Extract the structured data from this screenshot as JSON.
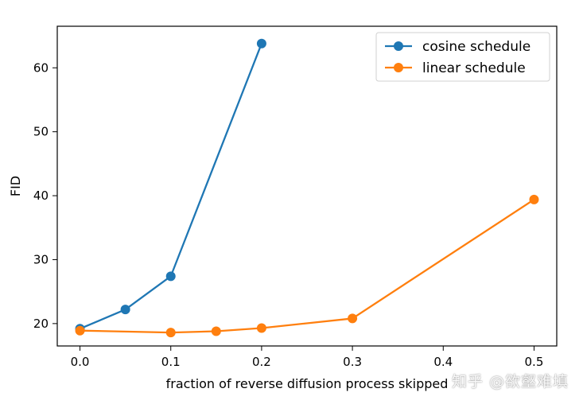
{
  "chart_data": {
    "type": "line",
    "title": "",
    "xlabel": "fraction of reverse diffusion process skipped",
    "ylabel": "FID",
    "xlim": [
      -0.025,
      0.525
    ],
    "ylim": [
      16.5,
      66.5
    ],
    "xticks": [
      0.0,
      0.1,
      0.2,
      0.3,
      0.4,
      0.5
    ],
    "xtick_labels": [
      "0.0",
      "0.1",
      "0.2",
      "0.3",
      "0.4",
      "0.5"
    ],
    "yticks": [
      20,
      30,
      40,
      50,
      60
    ],
    "ytick_labels": [
      "20",
      "30",
      "40",
      "50",
      "60"
    ],
    "grid": false,
    "legend": "top-right",
    "series": [
      {
        "name": "cosine schedule",
        "color": "#1f77b4",
        "x": [
          0.0,
          0.05,
          0.1,
          0.2
        ],
        "y": [
          19.2,
          22.2,
          27.4,
          63.8
        ]
      },
      {
        "name": "linear schedule",
        "color": "#ff7f0e",
        "x": [
          0.0,
          0.1,
          0.15,
          0.2,
          0.3,
          0.5
        ],
        "y": [
          18.9,
          18.6,
          18.8,
          19.3,
          20.8,
          39.4
        ]
      }
    ]
  },
  "watermark": "知乎 @欲壑难填"
}
